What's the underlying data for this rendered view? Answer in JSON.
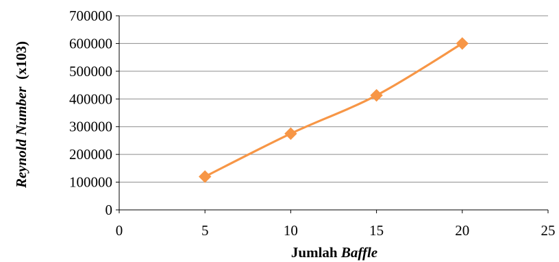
{
  "chart_data": {
    "type": "line",
    "x": [
      5,
      10,
      15,
      20
    ],
    "series": [
      {
        "values": [
          120000,
          275000,
          413000,
          600000
        ]
      }
    ],
    "xlabel": {
      "plain": "Jumlah ",
      "italic": "Baffle"
    },
    "ylabel": {
      "italic": "Reynold Number",
      "plain": "  (x103)"
    },
    "xlim": [
      0,
      25
    ],
    "ylim": [
      0,
      700000
    ],
    "xticks": [
      0,
      5,
      10,
      15,
      20,
      25
    ],
    "yticks": [
      0,
      100000,
      200000,
      300000,
      400000,
      500000,
      600000,
      700000
    ],
    "xtick_labels": [
      "0",
      "5",
      "10",
      "15",
      "20",
      "25"
    ],
    "ytick_labels": [
      "0",
      "100000",
      "200000",
      "300000",
      "400000",
      "500000",
      "600000",
      "700000"
    ],
    "grid": {
      "horizontal": true,
      "vertical": false
    },
    "marker": "diamond",
    "line_color": "#F79646",
    "grid_color": "#8C8C8C",
    "axis_color": "#000000"
  }
}
